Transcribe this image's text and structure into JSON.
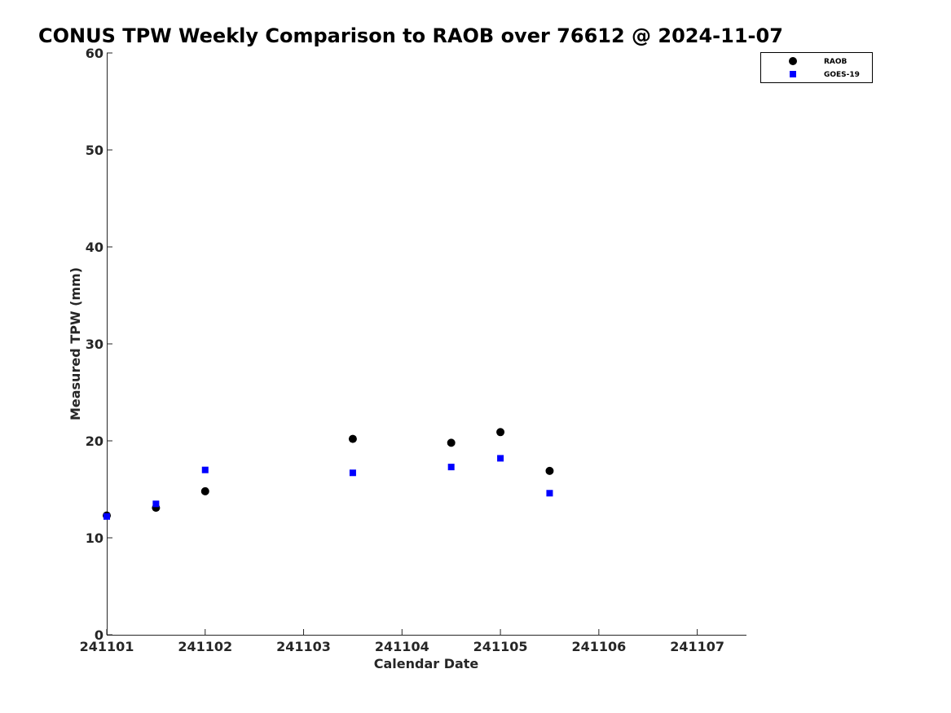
{
  "chart_data": {
    "type": "scatter",
    "title": "CONUS TPW Weekly Comparison to RAOB over 76612 @ 2024-11-07",
    "xlabel": "Calendar Date",
    "ylabel": "Measured TPW (mm)",
    "x_tick_labels": [
      "241101",
      "241102",
      "241103",
      "241104",
      "241105",
      "241106",
      "241107"
    ],
    "x_ticks": [
      "2024-11-01",
      "2024-11-02",
      "2024-11-03",
      "2024-11-04",
      "2024-11-05",
      "2024-11-06",
      "2024-11-07"
    ],
    "xlim": [
      "2024-11-01T00:00",
      "2024-11-07T12:00"
    ],
    "y_ticks": [
      0,
      10,
      20,
      30,
      40,
      50,
      60
    ],
    "ylim": [
      0,
      60
    ],
    "grid": false,
    "legend_position": "top-right",
    "series": [
      {
        "name": "RAOB",
        "marker": "circle",
        "color": "#000000",
        "points": [
          {
            "x": "2024-11-01T00:00",
            "y": 12.3
          },
          {
            "x": "2024-11-01T12:00",
            "y": 13.1
          },
          {
            "x": "2024-11-02T00:00",
            "y": 14.8
          },
          {
            "x": "2024-11-03T12:00",
            "y": 20.2
          },
          {
            "x": "2024-11-04T12:00",
            "y": 19.8
          },
          {
            "x": "2024-11-05T00:00",
            "y": 20.9
          },
          {
            "x": "2024-11-05T12:00",
            "y": 16.9
          }
        ]
      },
      {
        "name": "GOES-19",
        "marker": "square",
        "color": "#0000ff",
        "points": [
          {
            "x": "2024-11-01T00:00",
            "y": 12.2
          },
          {
            "x": "2024-11-01T12:00",
            "y": 13.5
          },
          {
            "x": "2024-11-02T00:00",
            "y": 17.0
          },
          {
            "x": "2024-11-03T12:00",
            "y": 16.7
          },
          {
            "x": "2024-11-04T12:00",
            "y": 17.3
          },
          {
            "x": "2024-11-05T00:00",
            "y": 18.2
          },
          {
            "x": "2024-11-05T12:00",
            "y": 14.6
          }
        ]
      }
    ]
  }
}
